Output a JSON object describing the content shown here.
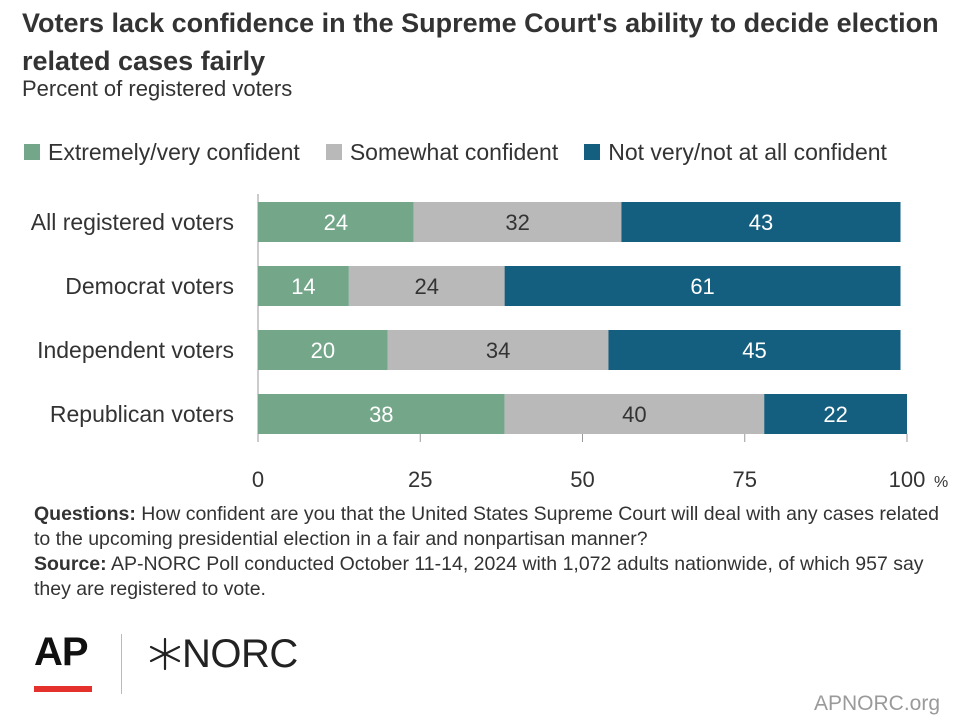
{
  "header": {
    "title": "Voters lack confidence in the Supreme Court's ability to decide election related cases fairly",
    "subtitle": "Percent of registered voters"
  },
  "colors": {
    "confident": "#74a68a",
    "somewhat": "#b9b9b9",
    "not_confident": "#145f7f"
  },
  "chart_data": {
    "type": "bar",
    "orientation": "horizontal",
    "stacked": true,
    "categories": [
      "All registered voters",
      "Democrat voters",
      "Independent voters",
      "Republican voters"
    ],
    "series": [
      {
        "name": "Extremely/very confident",
        "values": [
          24,
          14,
          20,
          38
        ]
      },
      {
        "name": "Somewhat confident",
        "values": [
          32,
          24,
          34,
          40
        ]
      },
      {
        "name": "Not very/not at all confident",
        "values": [
          43,
          61,
          45,
          22
        ]
      }
    ],
    "xlim": [
      0,
      100
    ],
    "xticks": [
      "0",
      "25",
      "50",
      "75",
      "100"
    ],
    "x_unit": "%",
    "legend_position": "top",
    "grid": false
  },
  "footer": {
    "questions_label": "Questions:",
    "questions_text": "How confident are you that the United States Supreme Court will deal with any cases related to the upcoming presidential election in a fair and nonpartisan manner?",
    "source_label": "Source:",
    "source_text": "AP-NORC Poll conducted October 11-14, 2024 with 1,072 adults nationwide, of which 957 say they are registered to vote.",
    "logo_ap": "AP",
    "logo_norc": "NORC",
    "site": "APNORC.org"
  }
}
